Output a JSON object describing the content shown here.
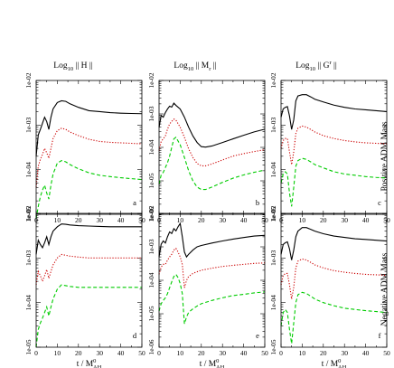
{
  "chart_data": [
    {
      "type": "line",
      "panel_label": "a",
      "title": "Log10 || H ||",
      "xlim": [
        0,
        50
      ],
      "ylim": [
        1e-05,
        0.01
      ],
      "yscale": "log",
      "x": [
        0,
        1,
        2,
        3,
        4,
        5,
        6,
        7,
        8,
        10,
        12,
        14,
        16,
        20,
        25,
        30,
        35,
        40,
        45,
        50
      ],
      "series": [
        {
          "color": "#000000",
          "dash": "solid",
          "values": [
            0.0002,
            0.0006,
            0.0008,
            0.0011,
            0.0015,
            0.0012,
            0.0008,
            0.0015,
            0.0023,
            0.0032,
            0.0035,
            0.0034,
            0.003,
            0.0025,
            0.0021,
            0.002,
            0.0019,
            0.00185,
            0.00182,
            0.0018
          ]
        },
        {
          "color": "#cc0000",
          "dash": "dot",
          "values": [
            4e-05,
            0.00012,
            0.00017,
            0.00022,
            0.0003,
            0.00024,
            0.00018,
            0.0003,
            0.0005,
            0.00075,
            0.00085,
            0.0008,
            0.0007,
            0.00058,
            0.00048,
            0.00043,
            0.00041,
            0.0004,
            0.00039,
            0.00038
          ]
        },
        {
          "color": "#00cc00",
          "dash": "dash",
          "values": [
            8e-06,
            1.5e-05,
            2.5e-05,
            3.5e-05,
            4.5e-05,
            3e-05,
            2.2e-05,
            4.5e-05,
            8e-05,
            0.00014,
            0.00016,
            0.00015,
            0.00013,
            0.000105,
            8.5e-05,
            7.5e-05,
            7e-05,
            6.6e-05,
            6.3e-05,
            6e-05
          ]
        }
      ]
    },
    {
      "type": "line",
      "panel_label": "b",
      "title": "Log10 || Mr ||",
      "xlim": [
        0,
        50
      ],
      "ylim": [
        1e-06,
        0.01
      ],
      "yscale": "log",
      "x": [
        0,
        1,
        2,
        3,
        4,
        5,
        6,
        7,
        8,
        10,
        12,
        14,
        16,
        18,
        20,
        22,
        25,
        30,
        35,
        40,
        45,
        50
      ],
      "series": [
        {
          "color": "#000000",
          "dash": "solid",
          "values": [
            0.0004,
            0.0009,
            0.0008,
            0.0011,
            0.0014,
            0.0017,
            0.0016,
            0.0021,
            0.0018,
            0.0014,
            0.0008,
            0.0004,
            0.00022,
            0.00014,
            0.000105,
            0.000102,
            0.00011,
            0.00014,
            0.00018,
            0.00023,
            0.00029,
            0.00035
          ]
        },
        {
          "color": "#cc0000",
          "dash": "dot",
          "values": [
            8e-05,
            0.00015,
            0.00018,
            0.00022,
            0.00035,
            0.0005,
            0.0006,
            0.0007,
            0.00065,
            0.0004,
            0.0002,
            9e-05,
            5e-05,
            3.3e-05,
            2.8e-05,
            2.8e-05,
            3.2e-05,
            4.2e-05,
            5.5e-05,
            6.5e-05,
            7.5e-05,
            8.5e-05
          ]
        },
        {
          "color": "#00cc00",
          "dash": "dash",
          "values": [
            8e-06,
            1.5e-05,
            1.8e-05,
            2.5e-05,
            3.5e-05,
            5.5e-05,
            0.0001,
            0.00018,
            0.0002,
            0.00012,
            5e-05,
            2e-05,
            1e-05,
            6.5e-06,
            5.5e-06,
            5.5e-06,
            6.5e-06,
            9e-06,
            1.2e-05,
            1.5e-05,
            1.8e-05,
            2.1e-05
          ]
        }
      ]
    },
    {
      "type": "line",
      "panel_label": "c",
      "title": "Log10 || G^r ||",
      "xlim": [
        0,
        50
      ],
      "ylim": [
        1e-05,
        0.01
      ],
      "yscale": "log",
      "x": [
        0,
        1,
        2,
        3,
        4,
        5,
        6,
        7,
        8,
        10,
        12,
        14,
        16,
        20,
        25,
        30,
        35,
        40,
        45,
        50
      ],
      "series": [
        {
          "color": "#000000",
          "dash": "solid",
          "values": [
            0.0015,
            0.0023,
            0.0025,
            0.0026,
            0.0016,
            0.0008,
            0.0013,
            0.0035,
            0.0045,
            0.0048,
            0.0048,
            0.0043,
            0.0038,
            0.0033,
            0.0028,
            0.0025,
            0.0023,
            0.0022,
            0.0021,
            0.002
          ]
        },
        {
          "color": "#cc0000",
          "dash": "dot",
          "values": [
            0.0003,
            0.00045,
            0.0005,
            0.0005,
            0.00025,
            0.00013,
            0.00025,
            0.00065,
            0.00085,
            0.00095,
            0.0009,
            0.0008,
            0.0007,
            0.00058,
            0.0005,
            0.00045,
            0.00042,
            0.0004,
            0.00039,
            0.00038
          ]
        },
        {
          "color": "#00cc00",
          "dash": "dash",
          "values": [
            5e-05,
            8e-05,
            9e-05,
            8e-05,
            3e-05,
            1.5e-05,
            4e-05,
            0.00012,
            0.00016,
            0.00018,
            0.00017,
            0.00015,
            0.00013,
            0.00011,
            9e-05,
            8e-05,
            7.5e-05,
            7e-05,
            6.7e-05,
            6.5e-05
          ]
        }
      ]
    },
    {
      "type": "line",
      "panel_label": "d",
      "title": "",
      "xlim": [
        0,
        50
      ],
      "ylim": [
        1e-05,
        0.01
      ],
      "yscale": "log",
      "x": [
        0,
        1,
        2,
        3,
        4,
        5,
        6,
        7,
        8,
        10,
        12,
        14,
        16,
        20,
        25,
        30,
        35,
        40,
        45,
        50
      ],
      "series": [
        {
          "color": "#000000",
          "dash": "solid",
          "values": [
            0.0012,
            0.0025,
            0.002,
            0.0017,
            0.0022,
            0.003,
            0.002,
            0.003,
            0.004,
            0.005,
            0.0058,
            0.0057,
            0.0055,
            0.0053,
            0.0052,
            0.0051,
            0.005,
            0.005,
            0.005,
            0.005
          ]
        },
        {
          "color": "#cc0000",
          "dash": "dot",
          "values": [
            0.00025,
            0.0005,
            0.0004,
            0.0003,
            0.0004,
            0.00055,
            0.00035,
            0.0005,
            0.0007,
            0.001,
            0.0012,
            0.00115,
            0.0011,
            0.00105,
            0.001,
            0.001,
            0.001,
            0.001,
            0.001,
            0.001
          ]
        },
        {
          "color": "#00cc00",
          "dash": "dash",
          "values": [
            1e-05,
            2.5e-05,
            3.5e-05,
            4.5e-05,
            6e-05,
            8e-05,
            5e-05,
            8e-05,
            0.00012,
            0.0002,
            0.00025,
            0.00024,
            0.00023,
            0.00022,
            0.00022,
            0.00022,
            0.00022,
            0.00022,
            0.00022,
            0.00022
          ]
        }
      ]
    },
    {
      "type": "line",
      "panel_label": "e",
      "title": "",
      "xlim": [
        0,
        50
      ],
      "ylim": [
        1e-06,
        0.01
      ],
      "yscale": "log",
      "x": [
        0,
        1,
        2,
        3,
        4,
        5,
        6,
        7,
        8,
        9,
        10,
        11,
        12,
        13,
        14,
        16,
        18,
        20,
        25,
        30,
        35,
        40,
        45,
        50
      ],
      "series": [
        {
          "color": "#000000",
          "dash": "solid",
          "values": [
            0.0005,
            0.0012,
            0.0015,
            0.0013,
            0.002,
            0.0028,
            0.0025,
            0.0035,
            0.003,
            0.004,
            0.005,
            0.002,
            0.0007,
            0.0005,
            0.0006,
            0.0008,
            0.001,
            0.0011,
            0.0013,
            0.0015,
            0.0017,
            0.0019,
            0.0021,
            0.0022
          ]
        },
        {
          "color": "#cc0000",
          "dash": "dot",
          "values": [
            0.00015,
            0.00025,
            0.0003,
            0.0003,
            0.0004,
            0.0005,
            0.0006,
            0.0008,
            0.0009,
            0.0007,
            0.0005,
            0.0003,
            6e-05,
            0.0001,
            0.00013,
            0.00016,
            0.00018,
            0.0002,
            0.00023,
            0.00026,
            0.00028,
            0.0003,
            0.00032,
            0.00033
          ]
        },
        {
          "color": "#00cc00",
          "dash": "dash",
          "values": [
            1.2e-05,
            2e-05,
            2.5e-05,
            3e-05,
            4e-05,
            6e-05,
            9e-05,
            0.00013,
            0.00015,
            0.00012,
            8e-05,
            4e-05,
            5e-06,
            8e-06,
            1.1e-05,
            1.4e-05,
            1.7e-05,
            2e-05,
            2.5e-05,
            3e-05,
            3.5e-05,
            3.8e-05,
            4.2e-05,
            4.5e-05
          ]
        }
      ]
    },
    {
      "type": "line",
      "panel_label": "f",
      "title": "",
      "xlim": [
        0,
        50
      ],
      "ylim": [
        1e-05,
        0.01
      ],
      "yscale": "log",
      "x": [
        0,
        1,
        2,
        3,
        4,
        5,
        6,
        7,
        8,
        10,
        12,
        14,
        16,
        20,
        25,
        30,
        35,
        40,
        45,
        50
      ],
      "series": [
        {
          "color": "#000000",
          "dash": "solid",
          "values": [
            0.0012,
            0.002,
            0.0022,
            0.0023,
            0.0016,
            0.0009,
            0.0015,
            0.003,
            0.004,
            0.0048,
            0.0048,
            0.0044,
            0.004,
            0.0035,
            0.0031,
            0.0029,
            0.0027,
            0.0026,
            0.0025,
            0.0024
          ]
        },
        {
          "color": "#cc0000",
          "dash": "dot",
          "values": [
            0.00025,
            0.0004,
            0.00045,
            0.00045,
            0.00025,
            0.00012,
            0.00022,
            0.0006,
            0.00085,
            0.00095,
            0.0009,
            0.0008,
            0.0007,
            0.0006,
            0.00052,
            0.00048,
            0.00045,
            0.00043,
            0.00042,
            0.00041
          ]
        },
        {
          "color": "#00cc00",
          "dash": "dash",
          "values": [
            3e-05,
            6e-05,
            7e-05,
            6e-05,
            2.5e-05,
            1.2e-05,
            3.5e-05,
            0.0001,
            0.00015,
            0.00017,
            0.00016,
            0.00014,
            0.00012,
            0.0001,
            8.5e-05,
            7.5e-05,
            7e-05,
            6.6e-05,
            6.3e-05,
            6e-05
          ]
        }
      ]
    }
  ],
  "row_labels": [
    "Positive ADM Mass",
    "Negative ADM Mass"
  ],
  "x_axis_label": "t / M",
  "x_axis_label_sup": "0",
  "x_axis_label_sub": "AH",
  "x_ticks": [
    "0",
    "10",
    "20",
    "30",
    "40",
    "50"
  ],
  "y_ticks_4dec": [
    "1e-05",
    "1e-04",
    "1e-03",
    "1e-02"
  ],
  "y_ticks_5dec": [
    "1e-06",
    "1e-05",
    "1e-04",
    "1e-03",
    "1e-02"
  ],
  "col_titles": [
    {
      "pre": "Log",
      "sub": "10",
      "body": " || H ||",
      "sup": "",
      "sub2": ""
    },
    {
      "pre": "Log",
      "sub": "10",
      "body": " || M",
      "sup": "",
      "sub2": "r",
      "tail": " ||"
    },
    {
      "pre": "Log",
      "sub": "10",
      "body": " || G",
      "sup": "r",
      "sub2": "",
      "tail": " ||"
    }
  ]
}
